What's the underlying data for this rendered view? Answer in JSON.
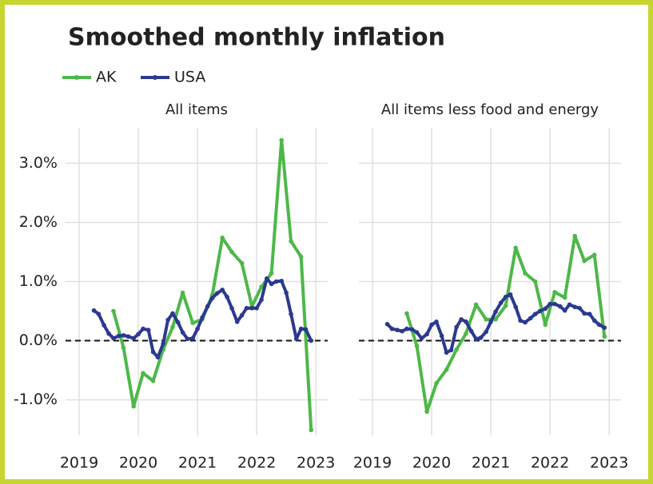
{
  "title": "Smoothed monthly inflation",
  "chart_data": [
    {
      "type": "line",
      "title": "All items",
      "xlim": [
        2018.77,
        2023.2
      ],
      "xticks": [
        2019,
        2020,
        2021,
        2022,
        2023
      ],
      "ylim": [
        -1.6,
        3.6
      ],
      "yticks": [
        {
          "value": -1,
          "label": "-1.0%"
        },
        {
          "value": 0,
          "label": "0.0%"
        },
        {
          "value": 1,
          "label": "1.0%"
        },
        {
          "value": 2,
          "label": "2.0%"
        },
        {
          "value": 3,
          "label": "3.0%"
        }
      ],
      "grid": true,
      "reference_line": 0,
      "series": [
        {
          "name": "AK",
          "color": "#4db848",
          "x": [
            2019.58,
            2019.75,
            2019.92,
            2020.08,
            2020.25,
            2020.42,
            2020.58,
            2020.75,
            2020.92,
            2021.08,
            2021.25,
            2021.42,
            2021.58,
            2021.75,
            2021.92,
            2022.08,
            2022.25,
            2022.42,
            2022.58,
            2022.75,
            2022.92
          ],
          "values": [
            0.5,
            -0.12,
            -1.11,
            -0.55,
            -0.68,
            -0.15,
            0.23,
            0.81,
            0.3,
            0.36,
            0.77,
            1.74,
            1.5,
            1.31,
            0.58,
            0.91,
            1.14,
            3.39,
            1.68,
            1.42,
            -1.51
          ]
        },
        {
          "name": "USA",
          "color": "#2b3990",
          "x": [
            2019.25,
            2019.33,
            2019.42,
            2019.5,
            2019.58,
            2019.67,
            2019.75,
            2019.83,
            2019.92,
            2020.0,
            2020.08,
            2020.17,
            2020.25,
            2020.33,
            2020.42,
            2020.5,
            2020.58,
            2020.67,
            2020.75,
            2020.83,
            2020.92,
            2021.0,
            2021.08,
            2021.17,
            2021.25,
            2021.33,
            2021.42,
            2021.5,
            2021.58,
            2021.67,
            2021.75,
            2021.83,
            2021.92,
            2022.0,
            2022.08,
            2022.17,
            2022.25,
            2022.33,
            2022.42,
            2022.5,
            2022.58,
            2022.67,
            2022.75,
            2022.83,
            2022.92
          ],
          "values": [
            0.51,
            0.45,
            0.26,
            0.12,
            0.04,
            0.08,
            0.09,
            0.07,
            0.04,
            0.11,
            0.2,
            0.18,
            -0.19,
            -0.28,
            -0.05,
            0.35,
            0.46,
            0.31,
            0.14,
            0.03,
            0.04,
            0.2,
            0.39,
            0.58,
            0.72,
            0.8,
            0.86,
            0.74,
            0.55,
            0.32,
            0.43,
            0.55,
            0.55,
            0.55,
            0.69,
            1.05,
            0.96,
            1.0,
            1.01,
            0.81,
            0.45,
            0.03,
            0.2,
            0.19,
            0.0
          ]
        }
      ]
    },
    {
      "type": "line",
      "title": "All items less food and energy",
      "xlim": [
        2018.77,
        2023.2
      ],
      "xticks": [
        2019,
        2020,
        2021,
        2022,
        2023
      ],
      "ylim": [
        -1.6,
        3.6
      ],
      "yticks": [
        -1,
        0,
        1,
        2,
        3
      ],
      "grid": true,
      "reference_line": 0,
      "series": [
        {
          "color": "#4db848",
          "x": [
            2019.58,
            2019.75,
            2019.92,
            2020.08,
            2020.25,
            2020.42,
            2020.58,
            2020.75,
            2020.92,
            2021.08,
            2021.25,
            2021.42,
            2021.58,
            2021.75,
            2021.92,
            2022.08,
            2022.25,
            2022.42,
            2022.58,
            2022.75,
            2022.92
          ],
          "values": [
            0.46,
            -0.09,
            -1.2,
            -0.72,
            -0.49,
            -0.15,
            0.12,
            0.61,
            0.36,
            0.36,
            0.59,
            1.57,
            1.14,
            1.0,
            0.27,
            0.82,
            0.73,
            1.77,
            1.35,
            1.45,
            0.07
          ]
        },
        {
          "color": "#2b3990",
          "x": [
            2019.25,
            2019.33,
            2019.42,
            2019.5,
            2019.58,
            2019.67,
            2019.75,
            2019.83,
            2019.92,
            2020.0,
            2020.08,
            2020.17,
            2020.25,
            2020.33,
            2020.42,
            2020.5,
            2020.58,
            2020.67,
            2020.75,
            2020.83,
            2020.92,
            2021.0,
            2021.08,
            2021.17,
            2021.25,
            2021.33,
            2021.42,
            2021.5,
            2021.58,
            2021.67,
            2021.75,
            2021.83,
            2021.92,
            2022.0,
            2022.08,
            2022.17,
            2022.25,
            2022.33,
            2022.42,
            2022.5,
            2022.58,
            2022.67,
            2022.75,
            2022.83,
            2022.92
          ],
          "values": [
            0.28,
            0.2,
            0.18,
            0.16,
            0.2,
            0.19,
            0.14,
            0.04,
            0.11,
            0.27,
            0.32,
            0.08,
            -0.2,
            -0.16,
            0.23,
            0.36,
            0.32,
            0.16,
            0.03,
            0.05,
            0.15,
            0.32,
            0.49,
            0.64,
            0.74,
            0.78,
            0.57,
            0.34,
            0.31,
            0.38,
            0.45,
            0.5,
            0.54,
            0.62,
            0.62,
            0.58,
            0.51,
            0.61,
            0.57,
            0.55,
            0.46,
            0.45,
            0.34,
            0.27,
            0.22
          ]
        }
      ]
    }
  ]
}
